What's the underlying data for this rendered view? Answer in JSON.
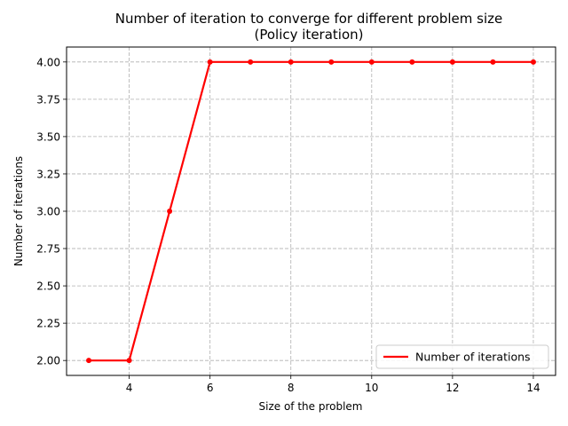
{
  "chart_data": {
    "type": "line",
    "title_line1": "Number of iteration to converge for different problem size",
    "title_line2": "(Policy iteration)",
    "xlabel": "Size of the problem",
    "ylabel": "Number of iterations",
    "x": [
      3,
      4,
      5,
      6,
      7,
      8,
      9,
      10,
      11,
      12,
      13,
      14
    ],
    "series": [
      {
        "name": "Number of iterations",
        "values": [
          2,
          2,
          3,
          4,
          4,
          4,
          4,
          4,
          4,
          4,
          4,
          4
        ],
        "color": "#ff0000"
      }
    ],
    "xlim": [
      2.45,
      14.55
    ],
    "ylim": [
      1.9,
      4.1
    ],
    "xticks": [
      4,
      6,
      8,
      10,
      12,
      14
    ],
    "xtick_labels": [
      "4",
      "6",
      "8",
      "10",
      "12",
      "14"
    ],
    "yticks": [
      2.0,
      2.25,
      2.5,
      2.75,
      3.0,
      3.25,
      3.5,
      3.75,
      4.0
    ],
    "ytick_labels": [
      "2.00",
      "2.25",
      "2.50",
      "2.75",
      "3.00",
      "3.25",
      "3.50",
      "3.75",
      "4.00"
    ],
    "grid": true,
    "legend_position": "lower-right"
  }
}
